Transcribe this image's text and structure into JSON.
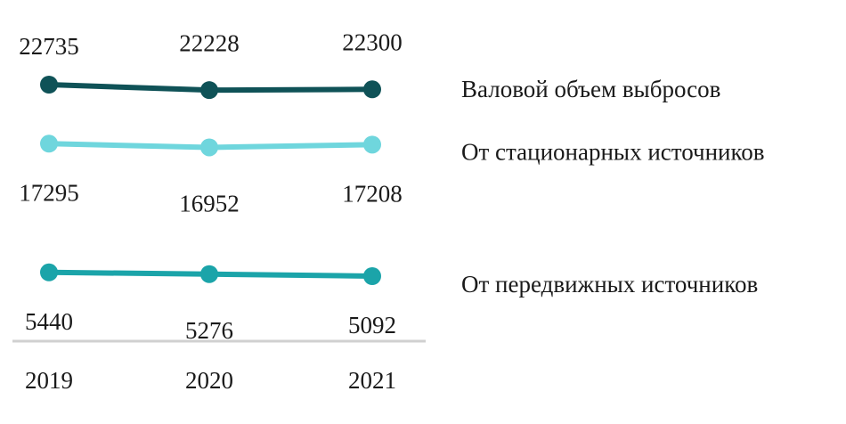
{
  "chart_data": {
    "type": "line",
    "categories": [
      "2019",
      "2020",
      "2021"
    ],
    "series": [
      {
        "name": "Валовой объем выбросов",
        "color": "#0f5257",
        "values": [
          22735,
          22228,
          22300
        ]
      },
      {
        "name": "От стационарных источников",
        "color": "#6fd6dd",
        "values": [
          17295,
          16952,
          17208
        ]
      },
      {
        "name": "От передвижных источников",
        "color": "#1ba4a9",
        "values": [
          5440,
          5276,
          5092
        ]
      }
    ]
  }
}
